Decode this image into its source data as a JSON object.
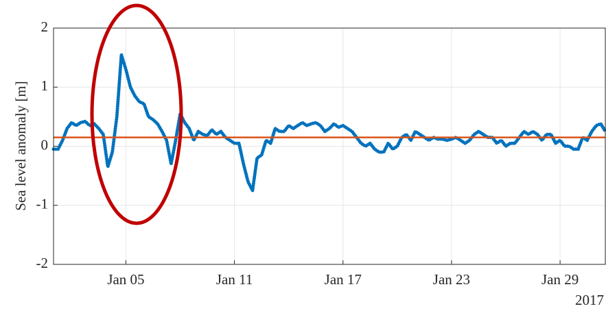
{
  "chart_data": {
    "type": "line",
    "y_label": "Sea level anomaly [m]",
    "x_year_label": "2017",
    "xlim": [
      1,
      31.5
    ],
    "ylim": [
      -2,
      2
    ],
    "xticks": [
      {
        "value": 5,
        "label": "Jan 05"
      },
      {
        "value": 11,
        "label": "Jan 11"
      },
      {
        "value": 17,
        "label": "Jan 17"
      },
      {
        "value": 23,
        "label": "Jan 23"
      },
      {
        "value": 29,
        "label": "Jan 29"
      }
    ],
    "yticks": [
      -2,
      -1,
      0,
      1,
      2
    ],
    "grid": true,
    "reference_line": {
      "value": 0.15,
      "color": "#d95319"
    },
    "series": [
      {
        "color": "#0072bd",
        "x": [
          1,
          1.25,
          1.5,
          1.75,
          2,
          2.25,
          2.5,
          2.75,
          3,
          3.25,
          3.5,
          3.75,
          4,
          4.25,
          4.5,
          4.75,
          5,
          5.25,
          5.5,
          5.75,
          6,
          6.25,
          6.5,
          6.75,
          7,
          7.25,
          7.5,
          7.75,
          8,
          8.25,
          8.5,
          8.75,
          9,
          9.25,
          9.5,
          9.75,
          10,
          10.25,
          10.5,
          10.75,
          11,
          11.25,
          11.5,
          11.75,
          12,
          12.25,
          12.5,
          12.75,
          13,
          13.25,
          13.5,
          13.75,
          14,
          14.25,
          14.5,
          14.75,
          15,
          15.25,
          15.5,
          15.75,
          16,
          16.25,
          16.5,
          16.75,
          17,
          17.25,
          17.5,
          17.75,
          18,
          18.25,
          18.5,
          18.75,
          19,
          19.25,
          19.5,
          19.75,
          20,
          20.25,
          20.5,
          20.75,
          21,
          21.25,
          21.5,
          21.75,
          22,
          22.25,
          22.5,
          22.75,
          23,
          23.25,
          23.5,
          23.75,
          24,
          24.25,
          24.5,
          24.75,
          25,
          25.25,
          25.5,
          25.75,
          26,
          26.25,
          26.5,
          26.75,
          27,
          27.25,
          27.5,
          27.75,
          28,
          28.25,
          28.5,
          28.75,
          29,
          29.25,
          29.5,
          29.75,
          30,
          30.25,
          30.5,
          30.75,
          31,
          31.25,
          31.5
        ],
        "values": [
          -0.05,
          -0.05,
          0.1,
          0.3,
          0.4,
          0.35,
          0.4,
          0.42,
          0.35,
          0.38,
          0.3,
          0.2,
          -0.35,
          -0.1,
          0.5,
          1.55,
          1.3,
          1.0,
          0.85,
          0.75,
          0.72,
          0.5,
          0.45,
          0.38,
          0.25,
          0.1,
          -0.3,
          0.1,
          0.55,
          0.4,
          0.3,
          0.1,
          0.25,
          0.2,
          0.18,
          0.28,
          0.2,
          0.25,
          0.15,
          0.1,
          0.05,
          0.05,
          -0.3,
          -0.6,
          -0.75,
          -0.2,
          -0.15,
          0.1,
          0.05,
          0.3,
          0.25,
          0.25,
          0.35,
          0.3,
          0.35,
          0.4,
          0.35,
          0.38,
          0.4,
          0.35,
          0.25,
          0.3,
          0.38,
          0.32,
          0.35,
          0.3,
          0.25,
          0.15,
          0.05,
          0.0,
          0.05,
          -0.05,
          -0.1,
          -0.1,
          0.05,
          -0.05,
          0.0,
          0.15,
          0.2,
          0.1,
          0.25,
          0.2,
          0.15,
          0.1,
          0.15,
          0.12,
          0.12,
          0.1,
          0.12,
          0.15,
          0.1,
          0.05,
          0.1,
          0.2,
          0.25,
          0.2,
          0.15,
          0.15,
          0.05,
          0.1,
          0.0,
          0.05,
          0.05,
          0.15,
          0.25,
          0.2,
          0.25,
          0.2,
          0.1,
          0.2,
          0.2,
          0.05,
          0.1,
          0.0,
          0.0,
          -0.05,
          -0.05,
          0.15,
          0.1,
          0.25,
          0.35,
          0.38,
          0.25
        ]
      }
    ]
  }
}
